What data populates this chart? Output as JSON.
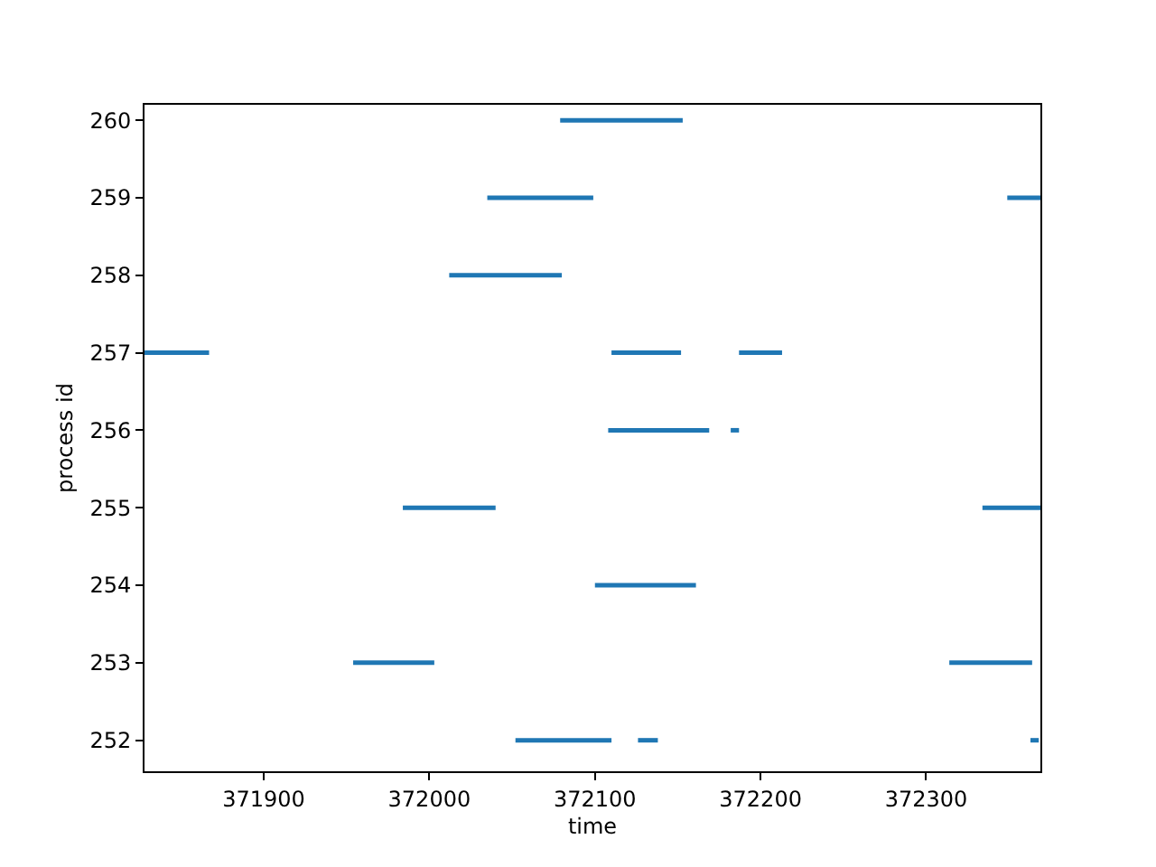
{
  "chart_data": {
    "type": "line",
    "xlabel": "time",
    "ylabel": "process id",
    "xlim": [
      371828,
      372369
    ],
    "xticks": [
      371900,
      372000,
      372100,
      372200,
      372300
    ],
    "ylim": [
      251.6,
      260.2
    ],
    "yticks": [
      252,
      253,
      254,
      255,
      256,
      257,
      258,
      259,
      260
    ],
    "marker": "none",
    "line_style": "solid",
    "series": [
      {
        "color": "#1f77b4",
        "x": [
          372052,
          372110,
          null,
          372126,
          372138,
          null,
          372363,
          372368
        ],
        "values": [
          252,
          252,
          null,
          252,
          252,
          null,
          252,
          252
        ]
      },
      {
        "color": "#1f77b4",
        "x": [
          371954,
          372003,
          null,
          372314,
          372364
        ],
        "values": [
          253,
          253,
          null,
          253,
          253
        ]
      },
      {
        "color": "#1f77b4",
        "x": [
          372100,
          372161
        ],
        "values": [
          254,
          254
        ]
      },
      {
        "color": "#1f77b4",
        "x": [
          371984,
          372040,
          null,
          372334,
          372369
        ],
        "values": [
          255,
          255,
          null,
          255,
          255
        ]
      },
      {
        "color": "#1f77b4",
        "x": [
          372108,
          372169,
          null,
          372182,
          372187
        ],
        "values": [
          256,
          256,
          null,
          256,
          256
        ]
      },
      {
        "color": "#1f77b4",
        "x": [
          371828,
          371867,
          null,
          372110,
          372152,
          null,
          372187,
          372213
        ],
        "values": [
          257,
          257,
          null,
          257,
          257,
          null,
          257,
          257
        ]
      },
      {
        "color": "#1f77b4",
        "x": [
          372012,
          372080
        ],
        "values": [
          258,
          258
        ]
      },
      {
        "color": "#1f77b4",
        "x": [
          372035,
          372099,
          null,
          372349,
          372369
        ],
        "values": [
          259,
          259,
          null,
          259,
          259
        ]
      },
      {
        "color": "#1f77b4",
        "x": [
          372079,
          372153
        ],
        "values": [
          260,
          260
        ]
      }
    ]
  }
}
